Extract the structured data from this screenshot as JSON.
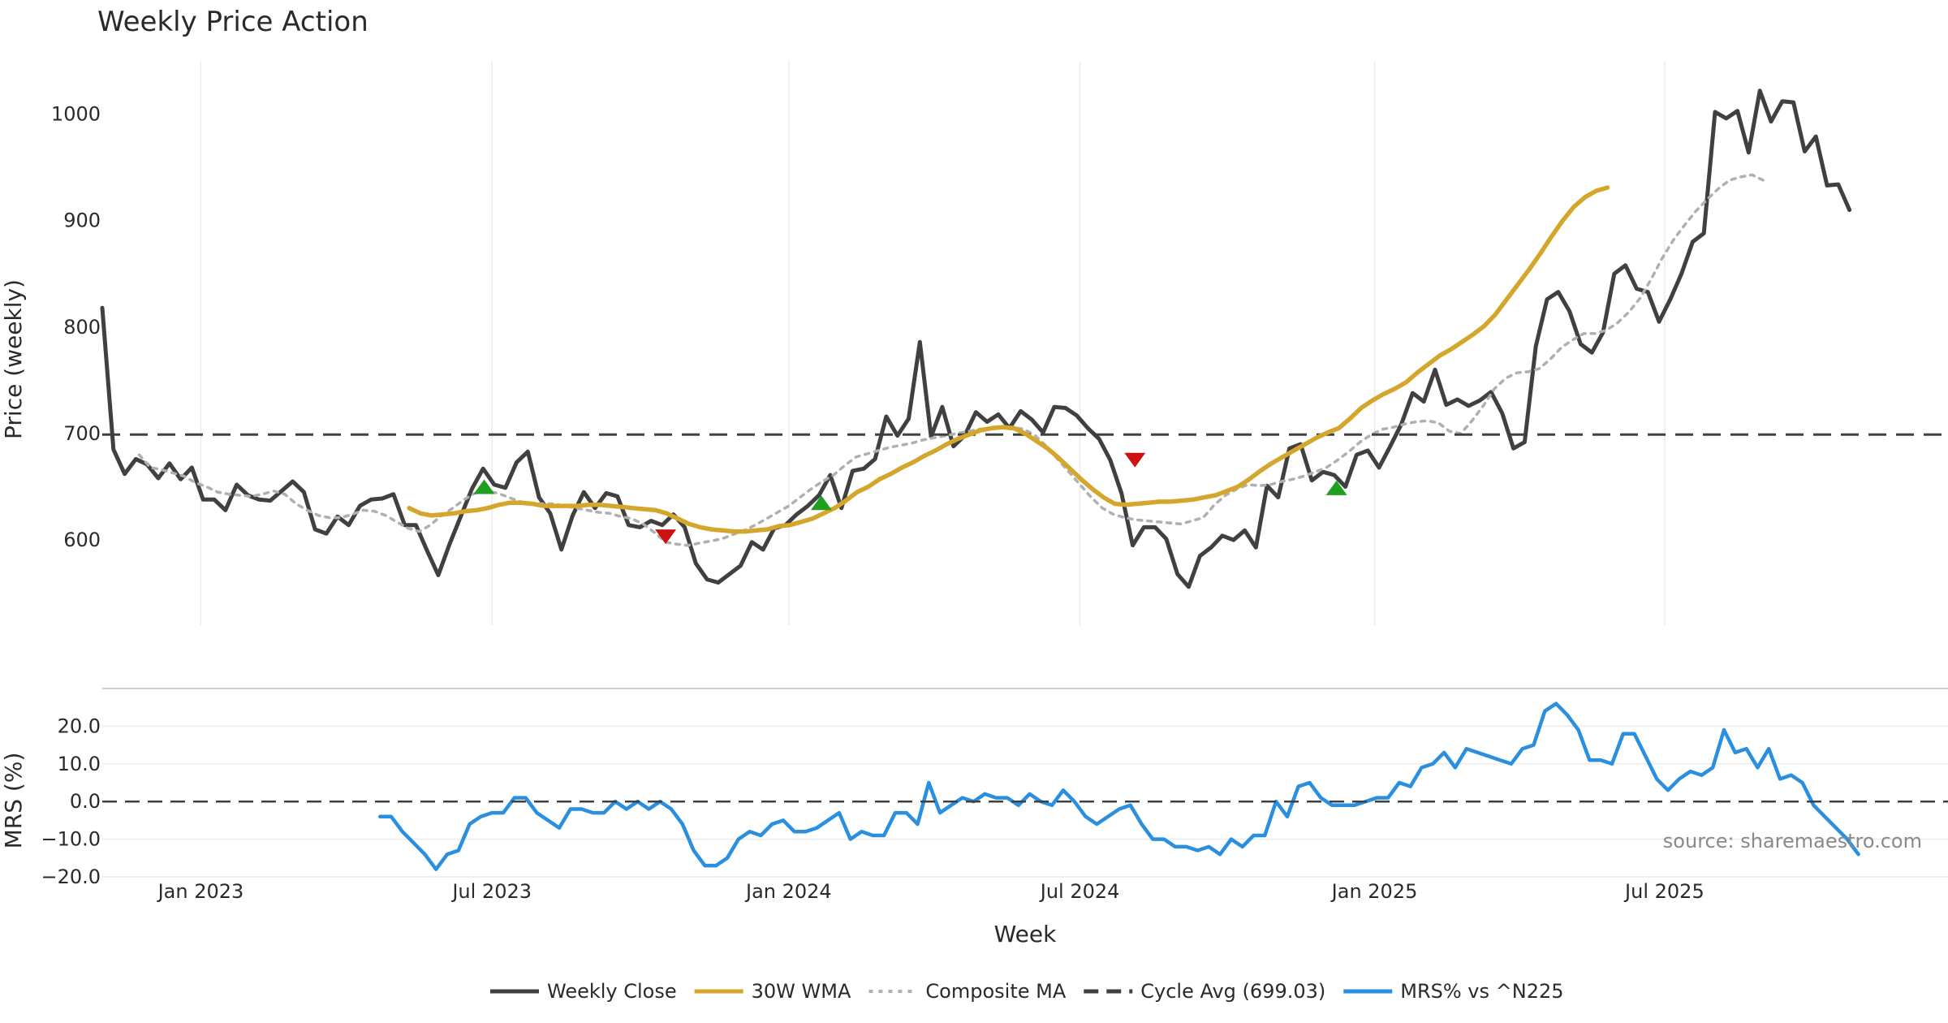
{
  "chart_data": [
    {
      "type": "line",
      "title": "Weekly Price Action",
      "ylabel": "Price (weekly)",
      "xlabel": "Week",
      "ylim": [
        520,
        1050
      ],
      "yticks": [
        600,
        700,
        800,
        900,
        1000
      ],
      "x_ticks": [
        {
          "label": "Jan 2023",
          "week": 4
        },
        {
          "label": "Jul 2023",
          "week": 30
        },
        {
          "label": "Jan 2024",
          "week": 56.5
        },
        {
          "label": "Jul 2024",
          "week": 82.5
        },
        {
          "label": "Jan 2025",
          "week": 108.8
        },
        {
          "label": "Jul 2025",
          "week": 134.7
        }
      ],
      "x_range": [
        -4.8,
        160
      ],
      "series": [
        {
          "name": "Weekly Close",
          "color": "#404040",
          "style": "solid",
          "start_week": -4.8,
          "values": [
            818,
            685,
            662,
            676,
            671,
            658,
            672,
            657,
            668,
            638,
            638,
            628,
            652,
            642,
            638,
            637,
            646,
            655,
            645,
            610,
            606,
            622,
            614,
            632,
            638,
            639,
            643,
            614,
            614,
            590,
            567,
            596,
            622,
            648,
            667,
            652,
            649,
            673,
            683,
            640,
            625,
            591,
            623,
            645,
            630,
            644,
            641,
            614,
            612,
            618,
            614,
            624,
            612,
            578,
            563,
            560,
            568,
            576,
            598,
            591,
            611,
            614,
            624,
            632,
            642,
            661,
            630,
            665,
            667,
            676,
            716,
            698,
            714,
            786,
            697,
            725,
            688,
            698,
            720,
            711,
            718,
            705,
            721,
            713,
            701,
            725,
            724,
            717,
            705,
            695,
            675,
            644,
            595,
            612,
            612,
            601,
            568,
            556,
            585,
            593,
            604,
            600,
            609,
            593,
            651,
            640,
            686,
            690,
            656,
            664,
            661,
            650,
            680,
            684,
            668,
            688,
            709,
            738,
            730,
            760,
            727,
            732,
            726,
            731,
            739,
            719,
            686,
            692,
            782,
            826,
            833,
            815,
            784,
            776,
            795,
            850,
            858,
            836,
            833,
            805,
            826,
            850,
            880,
            888,
            1002,
            996,
            1003,
            964,
            1022,
            993,
            1012,
            1011,
            965,
            979,
            933,
            934,
            910
          ]
        },
        {
          "name": "30W WMA",
          "color": "#d4a72c",
          "style": "solid",
          "start_week": 22.6,
          "values": [
            630,
            625,
            623,
            624,
            625,
            627,
            628,
            630,
            633,
            635,
            635,
            634,
            632,
            632,
            632,
            632,
            633,
            633,
            632,
            631,
            630,
            629,
            628,
            625,
            620,
            615,
            612,
            610,
            609,
            608,
            608,
            609,
            610,
            613,
            614,
            617,
            620,
            625,
            630,
            637,
            645,
            650,
            657,
            662,
            668,
            673,
            679,
            684,
            690,
            695,
            699,
            703,
            705,
            706,
            705,
            700,
            693,
            686,
            677,
            667,
            657,
            648,
            640,
            634,
            633,
            634,
            635,
            636,
            636,
            637,
            638,
            640,
            642,
            646,
            650,
            657,
            665,
            672,
            678,
            684,
            690,
            696,
            701,
            705,
            714,
            724,
            731,
            737,
            742,
            748,
            757,
            765,
            773,
            779,
            786,
            793,
            801,
            812,
            826,
            840,
            854,
            869,
            885,
            900,
            913,
            922,
            928,
            931
          ]
        },
        {
          "name": "Composite MA",
          "color": "#b0b0b0",
          "style": "dotted",
          "start_week": -1.5,
          "values": [
            680,
            668,
            666,
            663,
            660,
            654,
            650,
            645,
            643,
            642,
            641,
            643,
            646,
            643,
            634,
            628,
            623,
            621,
            621,
            624,
            628,
            627,
            623,
            617,
            611,
            608,
            614,
            623,
            630,
            638,
            644,
            646,
            644,
            640,
            636,
            634,
            634,
            634,
            632,
            630,
            628,
            626,
            625,
            622,
            620,
            615,
            607,
            598,
            596,
            595,
            597,
            599,
            601,
            605,
            609,
            614,
            620,
            626,
            632,
            640,
            648,
            655,
            661,
            670,
            678,
            681,
            684,
            687,
            689,
            691,
            694,
            696,
            698,
            700,
            702,
            704,
            705,
            706,
            706,
            704,
            698,
            688,
            676,
            664,
            652,
            640,
            630,
            624,
            621,
            619,
            618,
            617,
            616,
            615,
            618,
            621,
            633,
            642,
            648,
            652,
            651,
            652,
            655,
            657,
            660,
            664,
            668,
            675,
            683,
            692,
            699,
            704,
            706,
            709,
            711,
            712,
            710,
            702,
            700,
            712,
            726,
            742,
            752,
            757,
            758,
            761,
            770,
            781,
            788,
            794,
            794,
            797,
            804,
            814,
            827,
            845,
            865,
            882,
            896,
            909,
            920,
            930,
            938,
            941,
            943,
            938
          ]
        },
        {
          "name": "Cycle Avg (699.03)",
          "color": "#404040",
          "style": "dashed",
          "value": 699.03
        }
      ],
      "markers": [
        {
          "type": "buy",
          "color": "#1f9e1f",
          "week": 29.3,
          "value": 650
        },
        {
          "type": "buy",
          "color": "#1f9e1f",
          "week": 59.4,
          "value": 635
        },
        {
          "type": "buy",
          "color": "#1f9e1f",
          "week": 105.4,
          "value": 649
        },
        {
          "type": "sell",
          "color": "#cc1111",
          "week": 45.5,
          "value": 603
        },
        {
          "type": "sell",
          "color": "#cc1111",
          "week": 87.4,
          "value": 675
        }
      ]
    },
    {
      "type": "line",
      "ylabel": "MRS (%)",
      "ylim": [
        -20,
        30
      ],
      "yticks": [
        20.0,
        10.0,
        0.0,
        -10.0,
        -20.0
      ],
      "ytick_labels": [
        "20.0",
        "10.0",
        "0.0",
        "−10.0",
        "−20.0"
      ],
      "series": [
        {
          "name": "MRS% vs ^N225",
          "color": "#2b8fe0",
          "style": "solid",
          "start_week": 20.0,
          "values": [
            -4,
            -4,
            -8,
            -11,
            -14,
            -18,
            -14,
            -13,
            -6,
            -4,
            -3,
            -3,
            1,
            1,
            -3,
            -5,
            -7,
            -2,
            -2,
            -3,
            -3,
            0,
            -2,
            0,
            -2,
            0,
            -2,
            -6,
            -13,
            -17,
            -17,
            -15,
            -10,
            -8,
            -9,
            -6,
            -5,
            -8,
            -8,
            -7,
            -5,
            -3,
            -10,
            -8,
            -9,
            -9,
            -3,
            -3,
            -6,
            5,
            -3,
            -1,
            1,
            0,
            2,
            1,
            1,
            -1,
            2,
            0,
            -1,
            3,
            0,
            -4,
            -6,
            -4,
            -2,
            -1,
            -6,
            -10,
            -10,
            -12,
            -12,
            -13,
            -12,
            -14,
            -10,
            -12,
            -9,
            -9,
            0,
            -4,
            4,
            5,
            1,
            -1,
            -1,
            -1,
            0,
            1,
            1,
            5,
            4,
            9,
            10,
            13,
            9,
            14,
            13,
            12,
            11,
            10,
            14,
            15,
            24,
            26,
            23,
            19,
            11,
            11,
            10,
            18,
            18,
            12,
            6,
            3,
            6,
            8,
            7,
            9,
            19,
            13,
            14,
            9,
            14,
            6,
            7,
            5,
            -1,
            -4,
            -7,
            -10,
            -14
          ]
        },
        {
          "name": "zero-line",
          "color": "#404040",
          "style": "dashed",
          "value": 0
        }
      ],
      "annotation": "source: sharemaestro.com"
    }
  ],
  "legend": [
    {
      "label": "Weekly Close",
      "color": "#404040",
      "style": "solid"
    },
    {
      "label": "30W WMA",
      "color": "#d4a72c",
      "style": "solid"
    },
    {
      "label": "Composite MA",
      "color": "#b0b0b0",
      "style": "dotted"
    },
    {
      "label": "Cycle Avg (699.03)",
      "color": "#404040",
      "style": "dashed"
    },
    {
      "label": "MRS% vs ^N225",
      "color": "#2b8fe0",
      "style": "solid"
    }
  ]
}
